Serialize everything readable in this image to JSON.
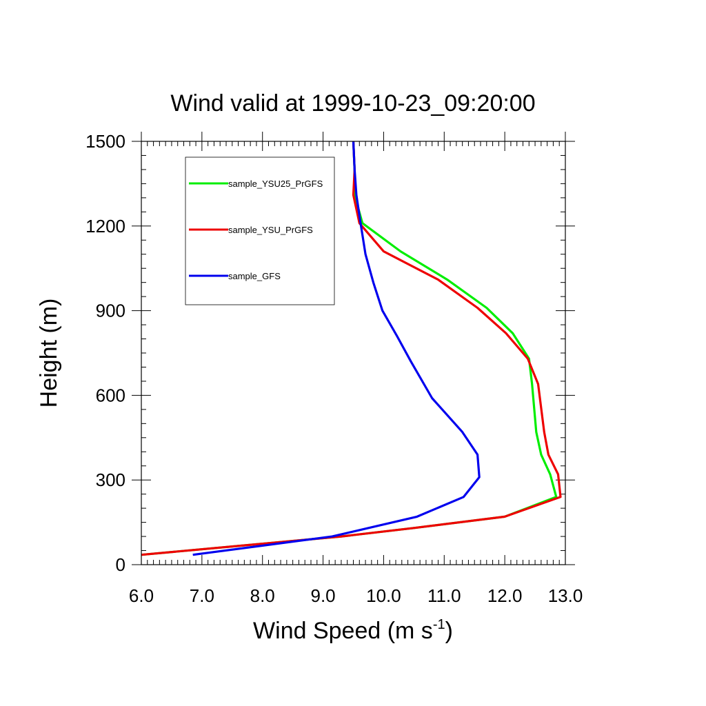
{
  "chart_data": {
    "type": "line",
    "title": "Wind valid at 1999-10-23_09:20:00",
    "xlabel": "Wind Speed (m s",
    "xlabel_sup": "-1",
    "xlabel_end": ")",
    "ylabel": "Height (m)",
    "xlim": [
      6.0,
      13.0
    ],
    "ylim": [
      0,
      1500
    ],
    "xticks": [
      "6.0",
      "7.0",
      "8.0",
      "9.0",
      "10.0",
      "11.0",
      "12.0",
      "13.0"
    ],
    "yticks": [
      "0",
      "300",
      "600",
      "900",
      "1200",
      "1500"
    ],
    "grid": false,
    "legend_position": "top-left",
    "series": [
      {
        "name": "sample_YSU25_PrGFS",
        "color": "#00ee00",
        "points": [
          [
            6.0,
            35
          ],
          [
            9.3,
            100
          ],
          [
            10.5,
            130
          ],
          [
            12.0,
            170
          ],
          [
            12.85,
            240
          ],
          [
            12.75,
            320
          ],
          [
            12.6,
            390
          ],
          [
            12.52,
            470
          ],
          [
            12.45,
            640
          ],
          [
            12.4,
            730
          ],
          [
            12.13,
            820
          ],
          [
            11.7,
            910
          ],
          [
            11.05,
            1010
          ],
          [
            10.28,
            1110
          ],
          [
            9.65,
            1210
          ],
          [
            9.52,
            1310
          ],
          [
            9.52,
            1400
          ],
          [
            9.5,
            1500
          ]
        ]
      },
      {
        "name": "sample_YSU_PrGFS",
        "color": "#ee0000",
        "points": [
          [
            6.0,
            35
          ],
          [
            9.3,
            100
          ],
          [
            10.5,
            130
          ],
          [
            12.0,
            170
          ],
          [
            12.92,
            240
          ],
          [
            12.88,
            320
          ],
          [
            12.72,
            390
          ],
          [
            12.65,
            470
          ],
          [
            12.55,
            640
          ],
          [
            12.38,
            730
          ],
          [
            12.02,
            820
          ],
          [
            11.55,
            910
          ],
          [
            10.9,
            1010
          ],
          [
            10.0,
            1110
          ],
          [
            9.6,
            1210
          ],
          [
            9.5,
            1310
          ],
          [
            9.52,
            1400
          ],
          [
            9.5,
            1500
          ]
        ]
      },
      {
        "name": "sample_GFS",
        "color": "#0000ee",
        "points": [
          [
            6.85,
            35
          ],
          [
            9.15,
            100
          ],
          [
            10.55,
            170
          ],
          [
            11.32,
            240
          ],
          [
            11.58,
            310
          ],
          [
            11.55,
            390
          ],
          [
            11.3,
            470
          ],
          [
            10.8,
            590
          ],
          [
            10.45,
            720
          ],
          [
            10.22,
            810
          ],
          [
            9.98,
            900
          ],
          [
            9.83,
            1000
          ],
          [
            9.7,
            1100
          ],
          [
            9.62,
            1210
          ],
          [
            9.55,
            1310
          ],
          [
            9.52,
            1400
          ],
          [
            9.5,
            1500
          ]
        ]
      }
    ]
  }
}
